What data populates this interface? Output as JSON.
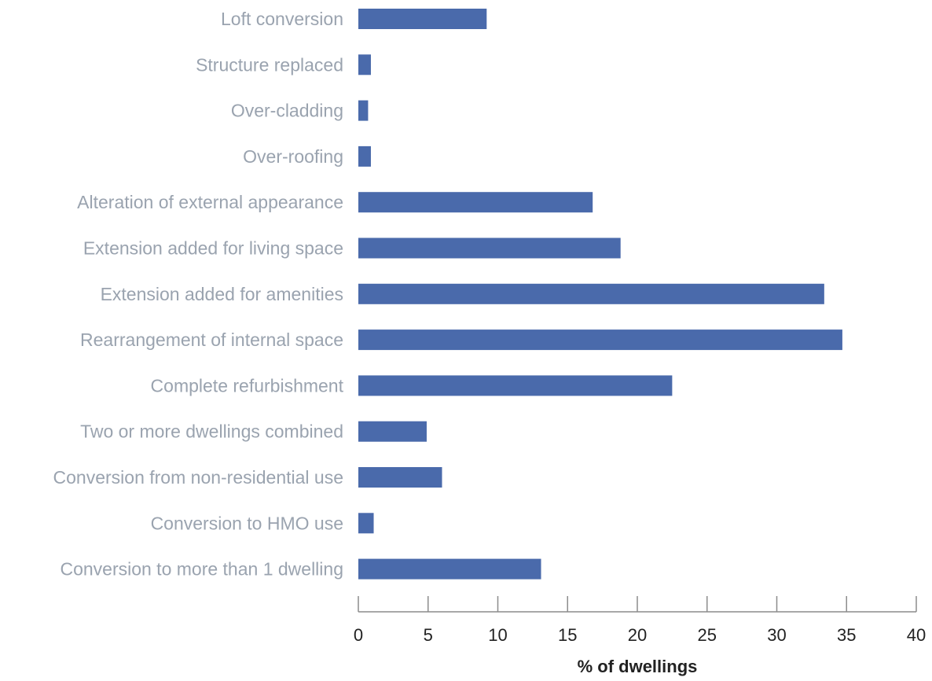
{
  "chart_data": {
    "type": "bar",
    "orientation": "horizontal",
    "categories": [
      "Loft conversion",
      "Structure replaced",
      "Over-cladding",
      "Over-roofing",
      "Alteration of external appearance",
      "Extension added for living space",
      "Extension added for amenities",
      "Rearrangement of internal space",
      "Complete refurbishment",
      "Two or more dwellings combined",
      "Conversion from non-residential use",
      "Conversion to HMO use",
      "Conversion to more than 1 dwelling"
    ],
    "values": [
      9.2,
      0.9,
      0.7,
      0.9,
      16.8,
      18.8,
      33.4,
      34.7,
      22.5,
      4.9,
      6.0,
      1.1,
      13.1
    ],
    "xlabel": "% of dwellings",
    "xlim": [
      0,
      40
    ],
    "ticks": [
      0,
      5,
      10,
      15,
      20,
      25,
      30,
      35,
      40
    ],
    "tick_labels": [
      "0",
      "5",
      "10",
      "15",
      "20",
      "25",
      "30",
      "35",
      "40"
    ],
    "grid": false,
    "colors": {
      "bar": "#4a6aab"
    }
  }
}
